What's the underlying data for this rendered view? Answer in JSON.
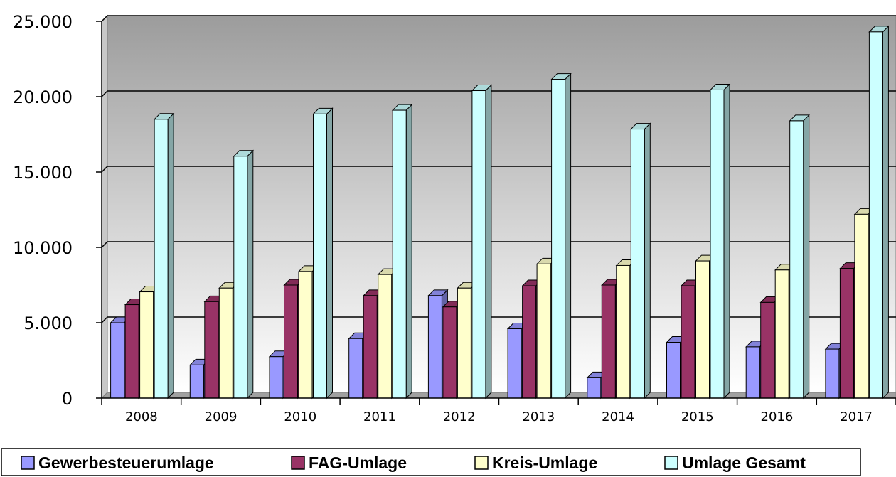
{
  "chart_data": {
    "type": "bar",
    "title": "",
    "xlabel": "",
    "ylabel": "",
    "categories": [
      "2008",
      "2009",
      "2010",
      "2011",
      "2012",
      "2013",
      "2014",
      "2015",
      "2016",
      "2017"
    ],
    "series": [
      {
        "name": "Gewerbesteuerumlage",
        "color": "#9999ff",
        "values": [
          5000,
          2200,
          2750,
          3950,
          6800,
          4600,
          1350,
          3700,
          3400,
          3250
        ]
      },
      {
        "name": "FAG-Umlage",
        "color": "#993366",
        "values": [
          6200,
          6400,
          7500,
          6800,
          6050,
          7450,
          7500,
          7450,
          6350,
          8600
        ]
      },
      {
        "name": "Kreis-Umlage",
        "color": "#ffffcc",
        "values": [
          7050,
          7300,
          8400,
          8200,
          7300,
          8900,
          8800,
          9100,
          8500,
          12200
        ]
      },
      {
        "name": "Umlage Gesamt",
        "color": "#ccffff",
        "values": [
          18500,
          16050,
          18850,
          19100,
          20400,
          21150,
          17850,
          20450,
          18400,
          24300
        ]
      }
    ],
    "ylim": [
      0,
      25000
    ],
    "yticks": [
      0,
      5000,
      10000,
      15000,
      20000,
      25000
    ],
    "ytick_labels": [
      "0",
      "5.000",
      "10.000",
      "15.000",
      "20.000",
      "25.000"
    ],
    "grid": true,
    "legend_position": "bottom"
  }
}
